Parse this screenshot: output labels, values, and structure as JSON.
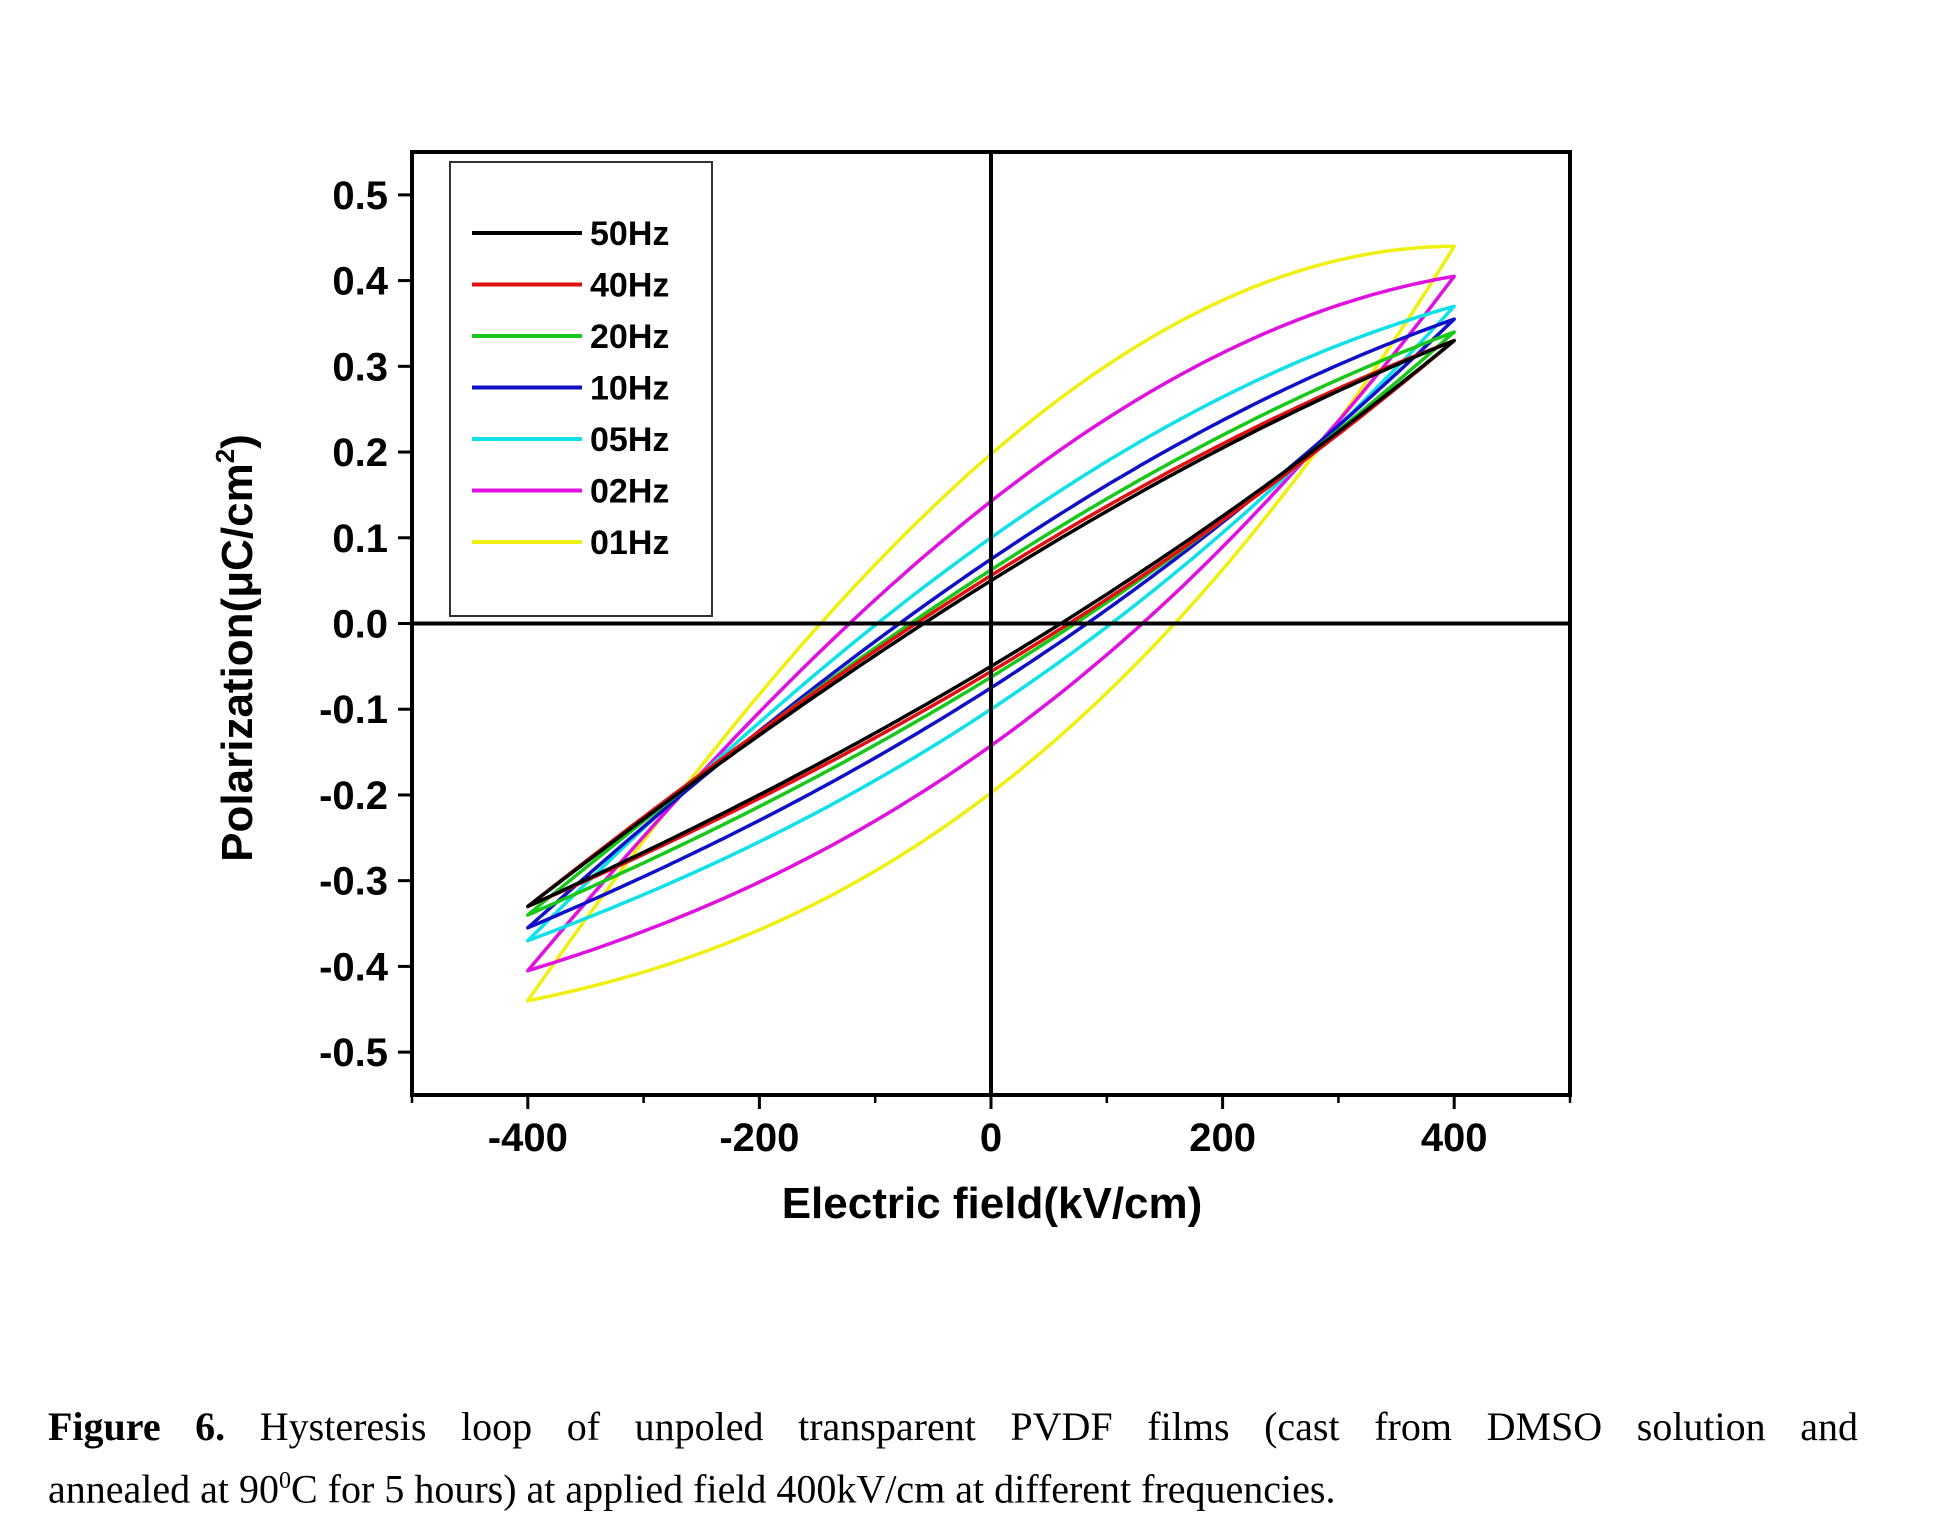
{
  "chart_data": {
    "type": "line",
    "xlabel": "Electric field(kV/cm)",
    "ylabel_main": "Polarization(μC/cm",
    "ylabel_sup": "2",
    "ylabel_end": ")",
    "xlim": [
      -500,
      500
    ],
    "ylim": [
      -0.55,
      0.55
    ],
    "xticks": [
      -400,
      -200,
      0,
      200,
      400
    ],
    "xtick_labels": [
      "-400",
      "-200",
      "0",
      "200",
      "400"
    ],
    "yticks": [
      0.5,
      0.4,
      0.3,
      0.2,
      0.1,
      0.0,
      -0.1,
      -0.2,
      -0.3,
      -0.4,
      -0.5
    ],
    "ytick_labels": [
      "0.5",
      "0.4",
      "0.3",
      "0.2",
      "0.1",
      "0.0",
      "-0.1",
      "-0.2",
      "-0.3",
      "-0.4",
      "-0.5"
    ],
    "grid": false,
    "legend_position": "top-left",
    "zero_lines": true,
    "series": [
      {
        "name": "50Hz",
        "color": "#000000",
        "pmax": 0.33,
        "pr": 0.045,
        "sag": 0.01
      },
      {
        "name": "40Hz",
        "color": "#e01010",
        "pmax": 0.33,
        "pr": 0.05,
        "sag": 0.012
      },
      {
        "name": "20Hz",
        "color": "#18c818",
        "pmax": 0.34,
        "pr": 0.055,
        "sag": 0.015
      },
      {
        "name": "10Hz",
        "color": "#1010c8",
        "pmax": 0.355,
        "pr": 0.065,
        "sag": 0.02
      },
      {
        "name": "05Hz",
        "color": "#10e0e8",
        "pmax": 0.37,
        "pr": 0.085,
        "sag": 0.03
      },
      {
        "name": "02Hz",
        "color": "#e010e0",
        "pmax": 0.405,
        "pr": 0.125,
        "sag": 0.035
      },
      {
        "name": "01Hz",
        "color": "#f0f010",
        "pmax": 0.44,
        "pr": 0.175,
        "sag": 0.045
      }
    ]
  },
  "caption": {
    "label": "Figure 6.",
    "line1_text": " Hysteresis loop of unpoled transparent PVDF films (cast from DMSO solution and",
    "line2_pre": "annealed at 90",
    "line2_sup": "0",
    "line2_post": "C for 5 hours) at applied field 400kV/cm at different frequencies."
  }
}
